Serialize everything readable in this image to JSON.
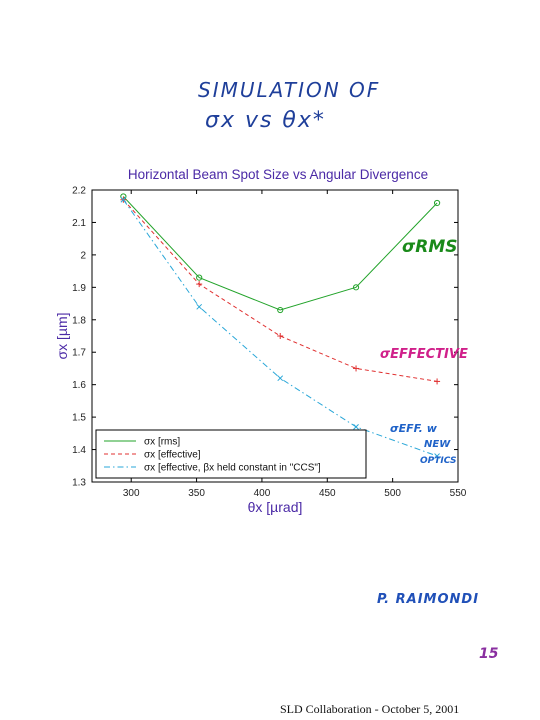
{
  "handwritten": {
    "title_line1": "SIMULATION OF",
    "title_line2": "σx vs θx*"
  },
  "chart_data": {
    "type": "line",
    "title": "Horizontal Beam Spot Size vs Angular Divergence",
    "xlabel": "θx [µrad]",
    "ylabel": "σx [µm]",
    "xlim": [
      270,
      550
    ],
    "ylim": [
      1.3,
      2.2
    ],
    "xticks": [
      300,
      350,
      400,
      450,
      500,
      550
    ],
    "yticks": [
      1.3,
      1.4,
      1.5,
      1.6,
      1.7,
      1.8,
      1.9,
      2,
      2.1,
      2.2
    ],
    "grid": false,
    "legend_position": "bottom-left",
    "series": [
      {
        "name": "σx [rms]",
        "style": "solid",
        "marker": "o",
        "color": "#22a32a",
        "x": [
          294,
          352,
          414,
          472,
          534
        ],
        "y": [
          2.18,
          1.93,
          1.83,
          1.9,
          2.16
        ]
      },
      {
        "name": "σx [effective]",
        "style": "dashed",
        "marker": "+",
        "color": "#e03030",
        "x": [
          294,
          352,
          414,
          472,
          534
        ],
        "y": [
          2.17,
          1.91,
          1.75,
          1.65,
          1.61
        ]
      },
      {
        "name": "σx [effective, βx held constant in \"CCS\"]",
        "style": "dashdot",
        "marker": "x",
        "color": "#2aa7d8",
        "x": [
          294,
          352,
          414,
          472,
          534
        ],
        "y": [
          2.17,
          1.84,
          1.62,
          1.47,
          1.38
        ]
      }
    ],
    "annotations": [
      {
        "text": "σRMS",
        "color": "#1a8a1a"
      },
      {
        "text": "σEFFECTIVE",
        "color": "#d0208a"
      },
      {
        "text": "σEFF. w",
        "color": "#1f62c8"
      },
      {
        "text": "NEW",
        "color": "#1f62c8"
      },
      {
        "text": "OPTICS",
        "color": "#1f62c8"
      }
    ]
  },
  "author": "P. RAIMONDI",
  "page_number": "15",
  "footer": "SLD Collaboration - October 5, 2001"
}
